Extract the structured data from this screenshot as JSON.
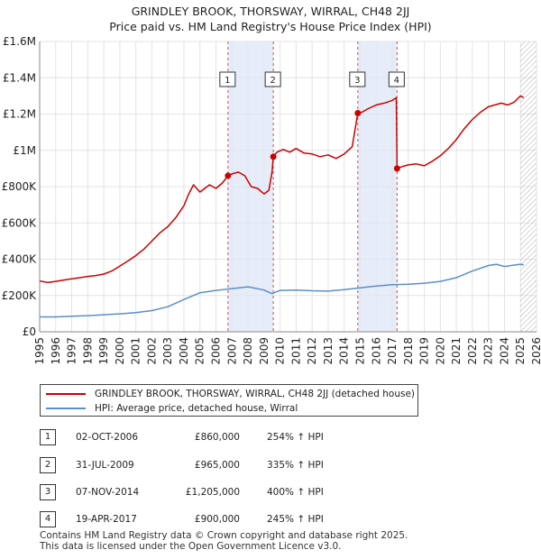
{
  "title_line1": "GRINDLEY BROOK, THORSWAY, WIRRAL, CH48 2JJ",
  "title_line2": "Price paid vs. HM Land Registry's House Price Index (HPI)",
  "colors": {
    "property": "#cc0000",
    "hpi": "#5b8fc7",
    "shade": "#dde6f5",
    "marker_line": "#cc0000"
  },
  "chart_data": {
    "type": "line",
    "xlim": [
      1995,
      2026
    ],
    "ylim": [
      0,
      1600000
    ],
    "x_ticks": [
      1995,
      1996,
      1997,
      1998,
      1999,
      2000,
      2001,
      2002,
      2003,
      2004,
      2005,
      2006,
      2007,
      2008,
      2009,
      2010,
      2011,
      2012,
      2013,
      2014,
      2015,
      2016,
      2017,
      2018,
      2019,
      2020,
      2021,
      2022,
      2023,
      2024,
      2025,
      2026
    ],
    "y_ticks": [
      0,
      200000,
      400000,
      600000,
      800000,
      1000000,
      1200000,
      1400000,
      1600000
    ],
    "y_tick_labels": [
      "£0",
      "£200K",
      "£400K",
      "£600K",
      "£800K",
      "£1M",
      "£1.2M",
      "£1.4M",
      "£1.6M"
    ],
    "hatch_from": 2025.0,
    "shaded_ranges": [
      [
        2006.75,
        2009.58
      ],
      [
        2014.85,
        2017.3
      ]
    ],
    "series": [
      {
        "name": "GRINDLEY BROOK, THORSWAY, WIRRAL, CH48 2JJ (detached house)",
        "x": [
          1995,
          1995.5,
          1996,
          1996.5,
          1997,
          1997.5,
          1998,
          1998.5,
          1999,
          1999.5,
          2000,
          2000.5,
          2001,
          2001.5,
          2002,
          2002.5,
          2003,
          2003.5,
          2004,
          2004.3,
          2004.6,
          2005,
          2005.3,
          2005.6,
          2006,
          2006.4,
          2006.75,
          2007,
          2007.4,
          2007.8,
          2008.2,
          2008.6,
          2009,
          2009.3,
          2009.5,
          2009.58,
          2009.8,
          2010.2,
          2010.6,
          2011,
          2011.5,
          2012,
          2012.5,
          2013,
          2013.5,
          2014,
          2014.5,
          2014.85,
          2015.1,
          2015.5,
          2016,
          2016.5,
          2017,
          2017.25,
          2017.3,
          2017.6,
          2018,
          2018.5,
          2019,
          2019.5,
          2020,
          2020.5,
          2021,
          2021.5,
          2022,
          2022.5,
          2023,
          2023.4,
          2023.8,
          2024.2,
          2024.6,
          2025,
          2025.2
        ],
        "values": [
          280000,
          272000,
          278000,
          285000,
          292000,
          298000,
          305000,
          310000,
          318000,
          335000,
          362000,
          390000,
          420000,
          455000,
          500000,
          545000,
          580000,
          630000,
          695000,
          760000,
          810000,
          770000,
          790000,
          810000,
          790000,
          820000,
          860000,
          870000,
          880000,
          860000,
          800000,
          790000,
          760000,
          780000,
          880000,
          965000,
          990000,
          1005000,
          990000,
          1010000,
          985000,
          980000,
          965000,
          975000,
          955000,
          980000,
          1020000,
          1205000,
          1210000,
          1230000,
          1250000,
          1260000,
          1275000,
          1290000,
          900000,
          910000,
          920000,
          925000,
          915000,
          940000,
          970000,
          1010000,
          1060000,
          1120000,
          1170000,
          1210000,
          1240000,
          1250000,
          1260000,
          1250000,
          1265000,
          1300000,
          1290000
        ]
      },
      {
        "name": "HPI: Average price, detached house, Wirral",
        "x": [
          1995,
          1996,
          1997,
          1998,
          1999,
          2000,
          2001,
          2002,
          2003,
          2004,
          2005,
          2006,
          2007,
          2008,
          2009,
          2009.5,
          2010,
          2011,
          2012,
          2013,
          2014,
          2015,
          2016,
          2017,
          2018,
          2019,
          2020,
          2021,
          2022,
          2023,
          2023.5,
          2024,
          2024.5,
          2025,
          2025.2
        ],
        "values": [
          82000,
          82000,
          86000,
          89000,
          94000,
          99000,
          106000,
          117000,
          138000,
          178000,
          215000,
          228000,
          238000,
          248000,
          230000,
          210000,
          228000,
          230000,
          226000,
          224000,
          232000,
          242000,
          252000,
          260000,
          262000,
          268000,
          278000,
          298000,
          335000,
          365000,
          372000,
          360000,
          366000,
          372000,
          368000
        ]
      }
    ],
    "sales": [
      {
        "label": "1",
        "x": 2006.75,
        "value": 860000
      },
      {
        "label": "2",
        "x": 2009.58,
        "value": 965000
      },
      {
        "label": "3",
        "x": 2014.85,
        "value": 1205000
      },
      {
        "label": "4",
        "x": 2017.3,
        "value": 900000
      }
    ]
  },
  "legend": {
    "property_label": "GRINDLEY BROOK, THORSWAY, WIRRAL, CH48 2JJ (detached house)",
    "hpi_label": "HPI: Average price, detached house, Wirral"
  },
  "transactions": [
    {
      "num": "1",
      "date": "02-OCT-2006",
      "price": "£860,000",
      "hpi": "254% ↑ HPI"
    },
    {
      "num": "2",
      "date": "31-JUL-2009",
      "price": "£965,000",
      "hpi": "335% ↑ HPI"
    },
    {
      "num": "3",
      "date": "07-NOV-2014",
      "price": "£1,205,000",
      "hpi": "400% ↑ HPI"
    },
    {
      "num": "4",
      "date": "19-APR-2017",
      "price": "£900,000",
      "hpi": "245% ↑ HPI"
    }
  ],
  "footer_line1": "Contains HM Land Registry data © Crown copyright and database right 2025.",
  "footer_line2": "This data is licensed under the Open Government Licence v3.0."
}
